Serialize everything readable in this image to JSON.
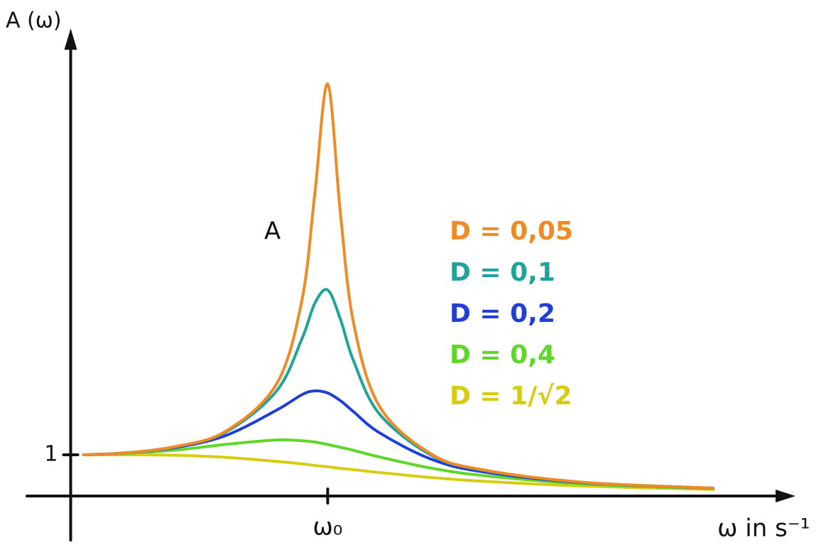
{
  "chart_data": {
    "type": "line",
    "y_label": "A (ω)",
    "x_label": "ω in s⁻¹",
    "annotation": "A",
    "xlim": [
      -0.17,
      2.82
    ],
    "ylim": [
      -1.07,
      11.35
    ],
    "xticks": [
      {
        "value": 1,
        "label": "ω₀"
      }
    ],
    "yticks": [
      1
    ],
    "grid": false,
    "legend": "right",
    "x": [
      0.05,
      0.2,
      0.4,
      0.6,
      0.8,
      0.9,
      0.95,
      1.0,
      1.05,
      1.1,
      1.2,
      1.4,
      1.6,
      2.0,
      2.5
    ],
    "series": [
      {
        "name": "D = 0,05",
        "color": "#f08a24",
        "values": [
          1.0,
          1.04,
          1.19,
          1.56,
          2.71,
          4.76,
          7.35,
          10.0,
          6.82,
          4.22,
          2.19,
          1.03,
          0.64,
          0.33,
          0.19
        ]
      },
      {
        "name": "D = 0,1",
        "color": "#1fa39a",
        "values": [
          1.0,
          1.04,
          1.19,
          1.54,
          2.54,
          3.82,
          4.68,
          5.0,
          4.28,
          3.29,
          2.0,
          1.0,
          0.63,
          0.33,
          0.19
        ]
      },
      {
        "name": "D = 0,2",
        "color": "#1f3fd8",
        "values": [
          1.0,
          1.04,
          1.17,
          1.46,
          2.08,
          2.46,
          2.55,
          2.5,
          2.31,
          2.05,
          1.54,
          0.9,
          0.59,
          0.32,
          0.19
        ]
      },
      {
        "name": "D = 0,4",
        "color": "#5fd62a",
        "values": [
          1.0,
          1.03,
          1.11,
          1.25,
          1.36,
          1.34,
          1.31,
          1.25,
          1.18,
          1.11,
          0.95,
          0.68,
          0.5,
          0.29,
          0.18
        ]
      },
      {
        "name": "D = 1/√2",
        "color": "#d8cc10",
        "values": [
          1.0,
          1.0,
          0.99,
          0.94,
          0.84,
          0.78,
          0.74,
          0.71,
          0.67,
          0.64,
          0.57,
          0.45,
          0.36,
          0.24,
          0.16
        ]
      }
    ]
  }
}
